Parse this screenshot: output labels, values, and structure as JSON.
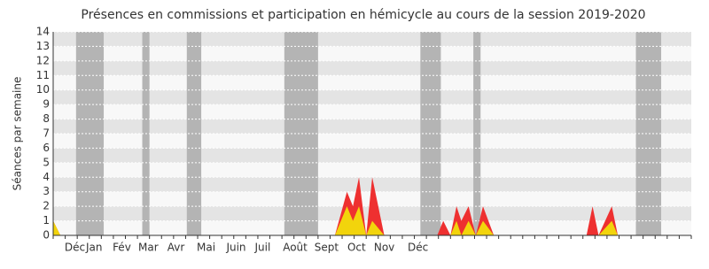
{
  "chart_data": {
    "type": "stacked_area",
    "title": "Présences en commissions et participation en hémicycle au cours de la session 2019-2020",
    "y_label": "Séances par semaine",
    "x": [
      0,
      0.6,
      23.4,
      24.4,
      24.9,
      25.4,
      26,
      26.5,
      27.5,
      31.9,
      32.4,
      33,
      33.5,
      33.9,
      34.5,
      35.1,
      35.7,
      36.6,
      44.3,
      44.8,
      45.3,
      46.4,
      46.9,
      53
    ],
    "series": [
      {
        "color": "#f2d40c",
        "values": [
          1,
          0,
          0,
          2,
          1,
          2,
          0,
          1,
          0,
          0,
          0,
          0,
          1,
          0,
          1,
          0,
          1,
          0,
          0,
          0,
          0,
          1,
          0,
          0
        ]
      },
      {
        "color": "#ee3030",
        "values": [
          0,
          0,
          0,
          1,
          1,
          2,
          0,
          3,
          0,
          0,
          1,
          0,
          1,
          1,
          1,
          0,
          1,
          0,
          0,
          2,
          0,
          1,
          0,
          0
        ]
      }
    ],
    "shaded_ranges": [
      [
        1.9,
        4.2
      ],
      [
        7.4,
        8.0
      ],
      [
        11.1,
        12.3
      ],
      [
        19.2,
        22.0
      ],
      [
        30.5,
        32.2
      ],
      [
        34.9,
        35.5
      ],
      [
        48.4,
        50.5
      ]
    ],
    "xlim": [
      0,
      53
    ],
    "xticks": [
      {
        "value": 1.8,
        "label": "Déc"
      },
      {
        "value": 3.4,
        "label": "Jan"
      },
      {
        "value": 5.7,
        "label": "Fév"
      },
      {
        "value": 7.9,
        "label": "Mar"
      },
      {
        "value": 10.2,
        "label": "Avr"
      },
      {
        "value": 12.7,
        "label": "Mai"
      },
      {
        "value": 15.2,
        "label": "Juin"
      },
      {
        "value": 17.4,
        "label": "Juil"
      },
      {
        "value": 20.1,
        "label": "Août"
      },
      {
        "value": 22.7,
        "label": "Sept"
      },
      {
        "value": 25.2,
        "label": "Oct"
      },
      {
        "value": 27.5,
        "label": "Nov"
      },
      {
        "value": 30.3,
        "label": "Déc"
      }
    ],
    "ylim": [
      0,
      14
    ],
    "yticks": [
      0,
      1,
      2,
      3,
      4,
      5,
      6,
      7,
      8,
      9,
      10,
      11,
      12,
      13,
      14
    ],
    "grid": true
  }
}
